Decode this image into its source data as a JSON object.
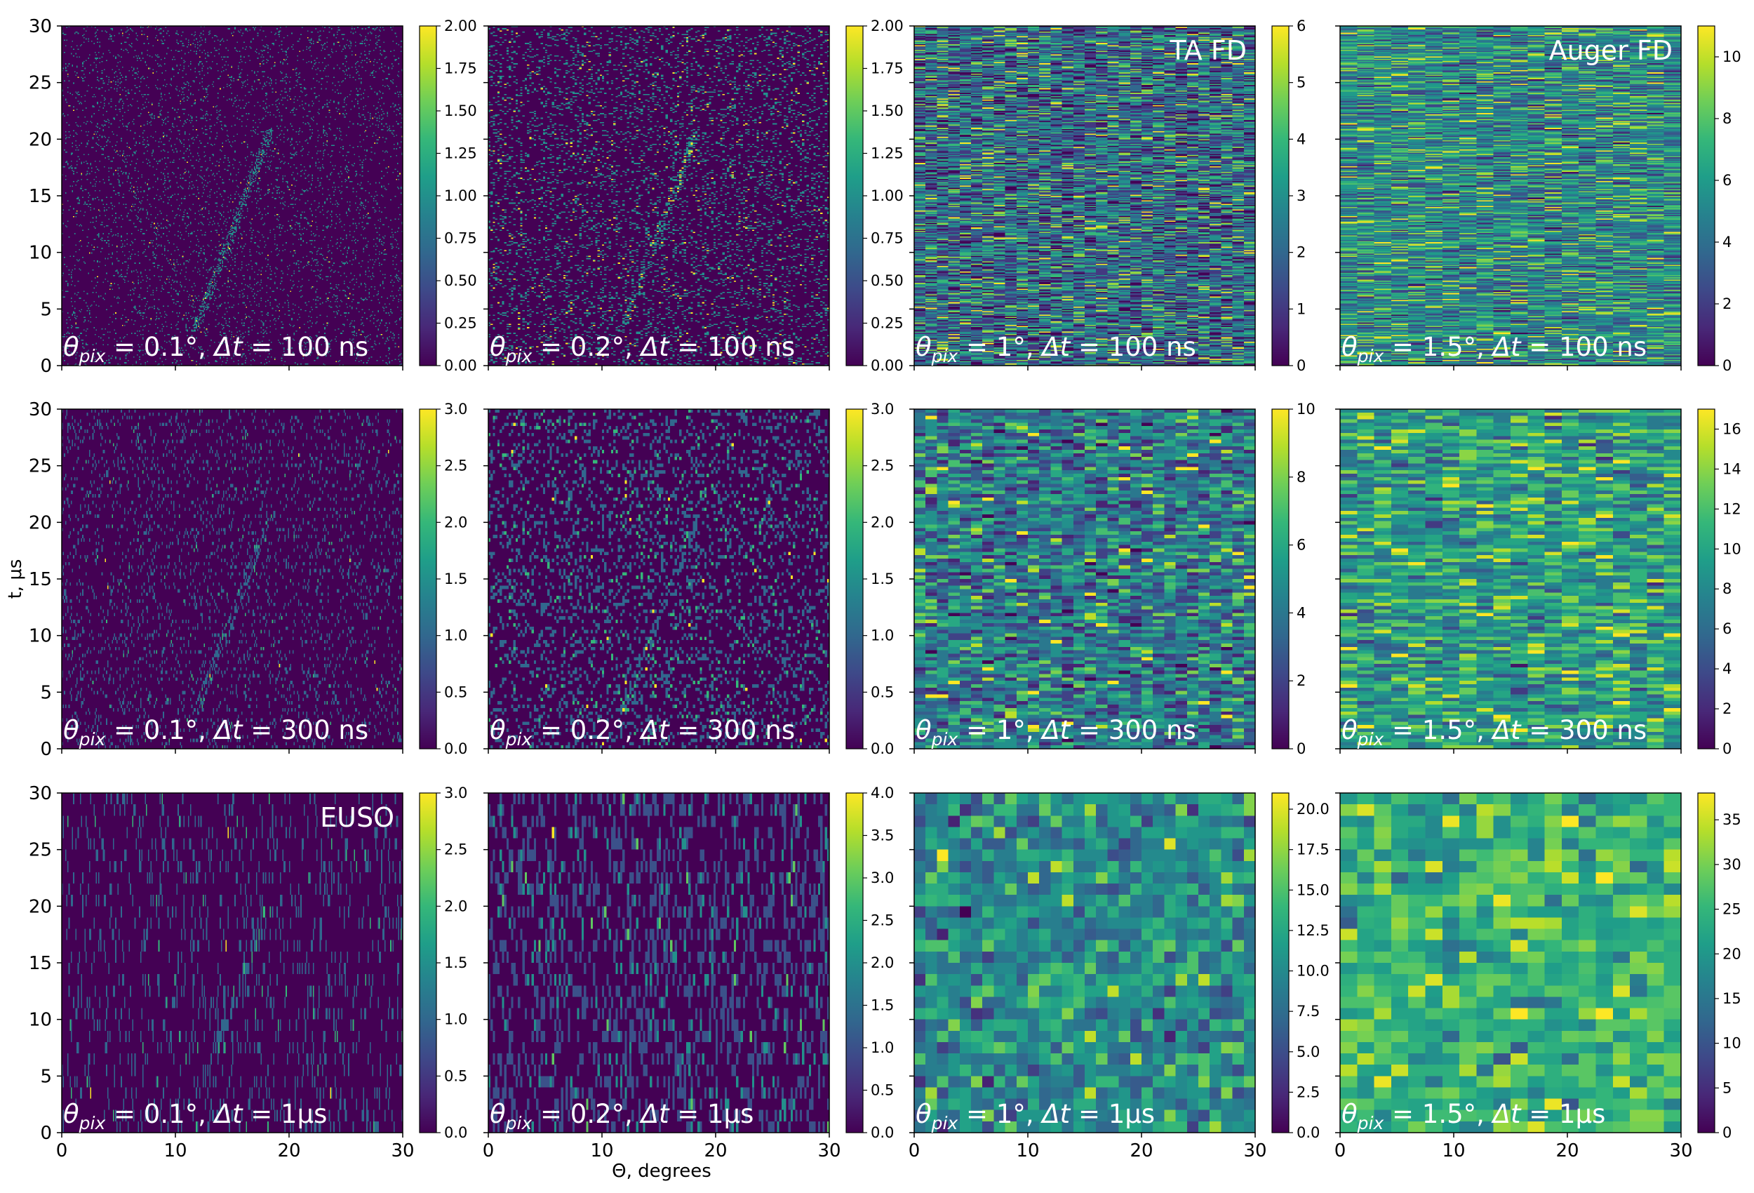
{
  "figure": {
    "ylabel": "t, μs",
    "xlabel": "Θ, degrees",
    "xticks": [
      "0",
      "10",
      "20",
      "30"
    ],
    "yticks": [
      "0",
      "5",
      "10",
      "15",
      "20",
      "25",
      "30"
    ],
    "colormap": "viridis",
    "viridis_stops": [
      "#440154",
      "#482878",
      "#3e4989",
      "#31688e",
      "#26828e",
      "#1f9e89",
      "#35b779",
      "#6ece58",
      "#b5de2b",
      "#fde725"
    ]
  },
  "chart_data": [
    {
      "type": "heatmap",
      "row": 0,
      "col": 0,
      "pix_label": "θ",
      "pix_sub": "pix",
      "pix_val": " = 0.1°, ",
      "dt_label": "Δt",
      "dt_val": " = 100 ns",
      "detector": "",
      "xlim": [
        0,
        30
      ],
      "ylim": [
        0,
        30
      ],
      "nx": 300,
      "ny": 300,
      "vmax": 2.0,
      "cbar_ticks": [
        "0.00",
        "0.25",
        "0.50",
        "0.75",
        "1.00",
        "1.25",
        "1.50",
        "1.75",
        "2.00"
      ],
      "cbar_values": [
        0,
        0.25,
        0.5,
        0.75,
        1.0,
        1.25,
        1.5,
        1.75,
        2.0
      ]
    },
    {
      "type": "heatmap",
      "row": 0,
      "col": 1,
      "pix_label": "θ",
      "pix_sub": "pix",
      "pix_val": " = 0.2°, ",
      "dt_label": "Δt",
      "dt_val": " = 100 ns",
      "detector": "",
      "xlim": [
        0,
        30
      ],
      "ylim": [
        0,
        30
      ],
      "nx": 150,
      "ny": 300,
      "vmax": 2.0,
      "cbar_ticks": [
        "0.00",
        "0.25",
        "0.50",
        "0.75",
        "1.00",
        "1.25",
        "1.50",
        "1.75",
        "2.00"
      ],
      "cbar_values": [
        0,
        0.25,
        0.5,
        0.75,
        1.0,
        1.25,
        1.5,
        1.75,
        2.0
      ]
    },
    {
      "type": "heatmap",
      "row": 0,
      "col": 2,
      "pix_label": "θ",
      "pix_sub": "pix",
      "pix_val": " = 1°, ",
      "dt_label": "Δt",
      "dt_val": " = 100 ns",
      "detector": "TA FD",
      "xlim": [
        0,
        30
      ],
      "ylim": [
        0,
        30
      ],
      "nx": 30,
      "ny": 300,
      "vmax": 6,
      "cbar_ticks": [
        "0",
        "1",
        "2",
        "3",
        "4",
        "5",
        "6"
      ],
      "cbar_values": [
        0,
        1,
        2,
        3,
        4,
        5,
        6
      ]
    },
    {
      "type": "heatmap",
      "row": 0,
      "col": 3,
      "pix_label": "θ",
      "pix_sub": "pix",
      "pix_val": " = 1.5°, ",
      "dt_label": "Δt",
      "dt_val": " = 100 ns",
      "detector": "Auger FD",
      "xlim": [
        0,
        30
      ],
      "ylim": [
        0,
        30
      ],
      "nx": 20,
      "ny": 300,
      "vmax": 11,
      "cbar_ticks": [
        "0",
        "2",
        "4",
        "6",
        "8",
        "10"
      ],
      "cbar_values": [
        0,
        2,
        4,
        6,
        8,
        10
      ]
    },
    {
      "type": "heatmap",
      "row": 1,
      "col": 0,
      "pix_label": "θ",
      "pix_sub": "pix",
      "pix_val": " = 0.1°, ",
      "dt_label": "Δt",
      "dt_val": " = 300 ns",
      "detector": "",
      "xlim": [
        0,
        30
      ],
      "ylim": [
        0,
        30
      ],
      "nx": 300,
      "ny": 100,
      "vmax": 3.0,
      "cbar_ticks": [
        "0.0",
        "0.5",
        "1.0",
        "1.5",
        "2.0",
        "2.5",
        "3.0"
      ],
      "cbar_values": [
        0,
        0.5,
        1.0,
        1.5,
        2.0,
        2.5,
        3.0
      ]
    },
    {
      "type": "heatmap",
      "row": 1,
      "col": 1,
      "pix_label": "θ",
      "pix_sub": "pix",
      "pix_val": " = 0.2°, ",
      "dt_label": "Δt",
      "dt_val": " = 300 ns",
      "detector": "",
      "xlim": [
        0,
        30
      ],
      "ylim": [
        0,
        30
      ],
      "nx": 150,
      "ny": 100,
      "vmax": 3.0,
      "cbar_ticks": [
        "0.0",
        "0.5",
        "1.0",
        "1.5",
        "2.0",
        "2.5",
        "3.0"
      ],
      "cbar_values": [
        0,
        0.5,
        1.0,
        1.5,
        2.0,
        2.5,
        3.0
      ]
    },
    {
      "type": "heatmap",
      "row": 1,
      "col": 2,
      "pix_label": "θ",
      "pix_sub": "pix",
      "pix_val": " = 1°, ",
      "dt_label": "Δt",
      "dt_val": " = 300 ns",
      "detector": "",
      "xlim": [
        0,
        30
      ],
      "ylim": [
        0,
        30
      ],
      "nx": 30,
      "ny": 100,
      "vmax": 10,
      "cbar_ticks": [
        "0",
        "2",
        "4",
        "6",
        "8",
        "10"
      ],
      "cbar_values": [
        0,
        2,
        4,
        6,
        8,
        10
      ]
    },
    {
      "type": "heatmap",
      "row": 1,
      "col": 3,
      "pix_label": "θ",
      "pix_sub": "pix",
      "pix_val": " = 1.5°, ",
      "dt_label": "Δt",
      "dt_val": " = 300 ns",
      "detector": "",
      "xlim": [
        0,
        30
      ],
      "ylim": [
        0,
        30
      ],
      "nx": 20,
      "ny": 100,
      "vmax": 17,
      "cbar_ticks": [
        "0",
        "2",
        "4",
        "6",
        "8",
        "10",
        "12",
        "14",
        "16"
      ],
      "cbar_values": [
        0,
        2,
        4,
        6,
        8,
        10,
        12,
        14,
        16
      ]
    },
    {
      "type": "heatmap",
      "row": 2,
      "col": 0,
      "pix_label": "θ",
      "pix_sub": "pix",
      "pix_val": " = 0.1°, ",
      "dt_label": "Δt",
      "dt_val": " = 1μs",
      "detector": "EUSO",
      "xlim": [
        0,
        30
      ],
      "ylim": [
        0,
        30
      ],
      "nx": 300,
      "ny": 30,
      "vmax": 3.0,
      "cbar_ticks": [
        "0.0",
        "0.5",
        "1.0",
        "1.5",
        "2.0",
        "2.5",
        "3.0"
      ],
      "cbar_values": [
        0,
        0.5,
        1.0,
        1.5,
        2.0,
        2.5,
        3.0
      ]
    },
    {
      "type": "heatmap",
      "row": 2,
      "col": 1,
      "pix_label": "θ",
      "pix_sub": "pix",
      "pix_val": " = 0.2°, ",
      "dt_label": "Δt",
      "dt_val": " = 1μs",
      "detector": "",
      "xlim": [
        0,
        30
      ],
      "ylim": [
        0,
        30
      ],
      "nx": 150,
      "ny": 30,
      "vmax": 4.0,
      "cbar_ticks": [
        "0.0",
        "0.5",
        "1.0",
        "1.5",
        "2.0",
        "2.5",
        "3.0",
        "3.5",
        "4.0"
      ],
      "cbar_values": [
        0,
        0.5,
        1.0,
        1.5,
        2.0,
        2.5,
        3.0,
        3.5,
        4.0
      ]
    },
    {
      "type": "heatmap",
      "row": 2,
      "col": 2,
      "pix_label": "θ",
      "pix_sub": "pix",
      "pix_val": " = 1°, ",
      "dt_label": "Δt",
      "dt_val": " = 1μs",
      "detector": "",
      "xlim": [
        0,
        30
      ],
      "ylim": [
        0,
        30
      ],
      "nx": 30,
      "ny": 30,
      "vmax": 21,
      "cbar_ticks": [
        "0.0",
        "2.5",
        "5.0",
        "7.5",
        "10.0",
        "12.5",
        "15.0",
        "17.5",
        "20.0"
      ],
      "cbar_values": [
        0,
        2.5,
        5.0,
        7.5,
        10.0,
        12.5,
        15.0,
        17.5,
        20.0
      ]
    },
    {
      "type": "heatmap",
      "row": 2,
      "col": 3,
      "pix_label": "θ",
      "pix_sub": "pix",
      "pix_val": " = 1.5°, ",
      "dt_label": "Δt",
      "dt_val": " = 1μs",
      "detector": "",
      "xlim": [
        0,
        30
      ],
      "ylim": [
        0,
        30
      ],
      "nx": 20,
      "ny": 30,
      "vmax": 38,
      "cbar_ticks": [
        "0",
        "5",
        "10",
        "15",
        "20",
        "25",
        "30",
        "35"
      ],
      "cbar_values": [
        0,
        5,
        10,
        15,
        20,
        25,
        30,
        35
      ]
    }
  ]
}
